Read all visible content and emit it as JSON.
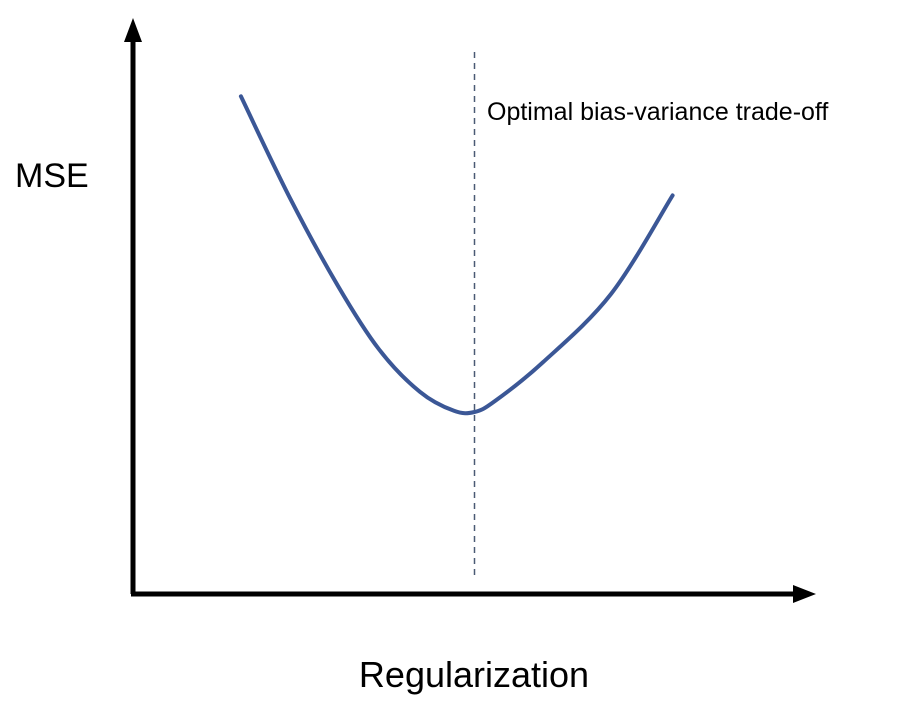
{
  "chart_data": {
    "type": "line",
    "title": "",
    "xlabel": "Regularization",
    "ylabel": "MSE",
    "grid": false,
    "xlim": [
      0,
      1
    ],
    "ylim": [
      0,
      1
    ],
    "series": [
      {
        "color": "#3b5796",
        "x": [
          0.158,
          0.23,
          0.3,
          0.36,
          0.42,
          0.47,
          0.5,
          0.53,
          0.6,
          0.7,
          0.79
        ],
        "y": [
          0.864,
          0.687,
          0.535,
          0.425,
          0.351,
          0.318,
          0.316,
          0.335,
          0.402,
          0.521,
          0.692
        ]
      }
    ],
    "annotations": [
      {
        "text": "Optimal bias-variance trade-off",
        "x": 0.5
      }
    ]
  },
  "colors": {
    "axis": "#000000",
    "curve": "#3b5796",
    "guide": "#4a5a74"
  }
}
